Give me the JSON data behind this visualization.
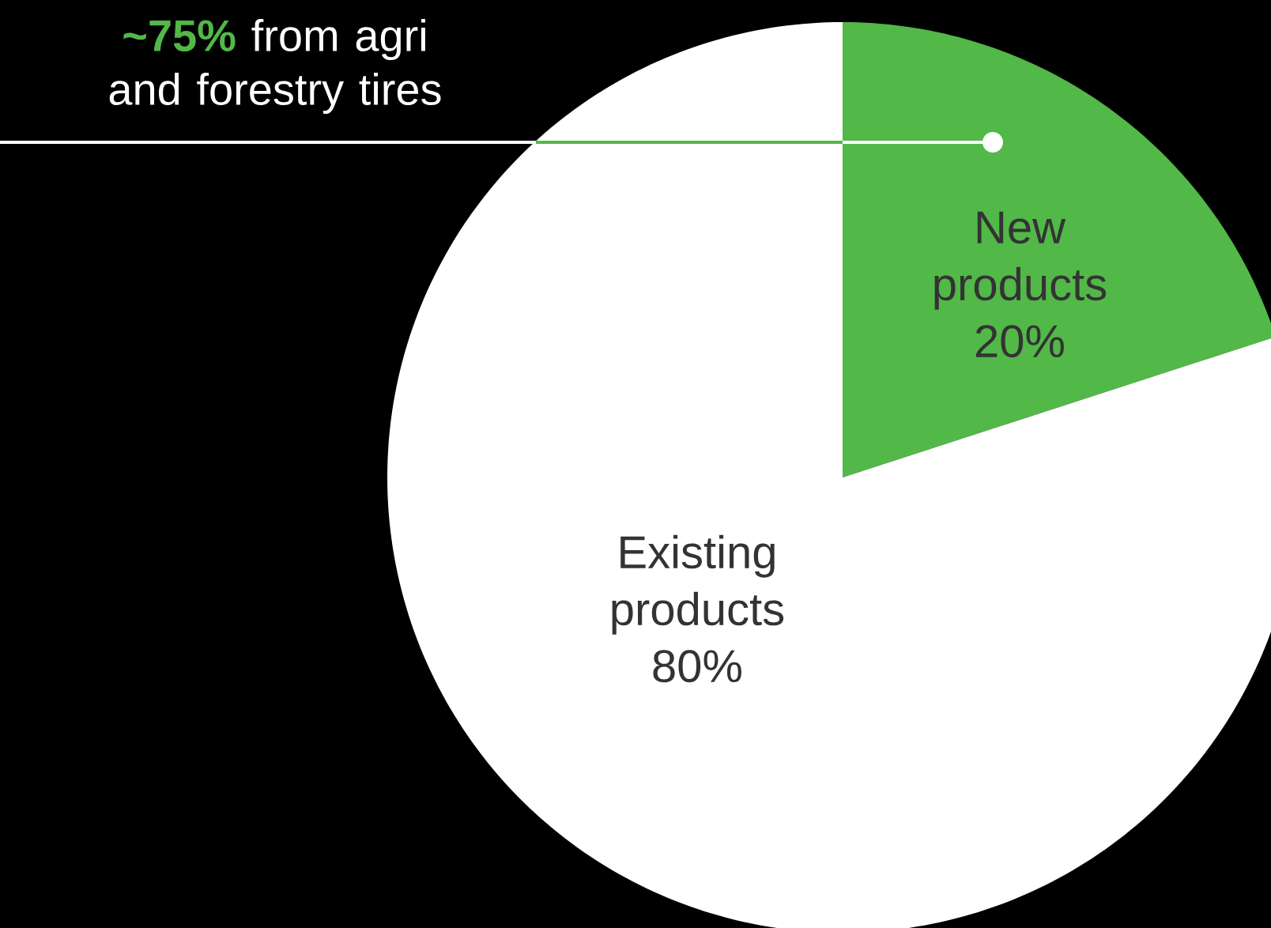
{
  "chart_data": {
    "type": "pie",
    "categories": [
      "New products",
      "Existing products"
    ],
    "values": [
      20,
      80
    ],
    "value_labels": [
      "20%",
      "80%"
    ],
    "colors": [
      "#52b848",
      "#ffffff"
    ],
    "annotations": [
      "**~75%** from agri and forestry tires"
    ]
  }
}
